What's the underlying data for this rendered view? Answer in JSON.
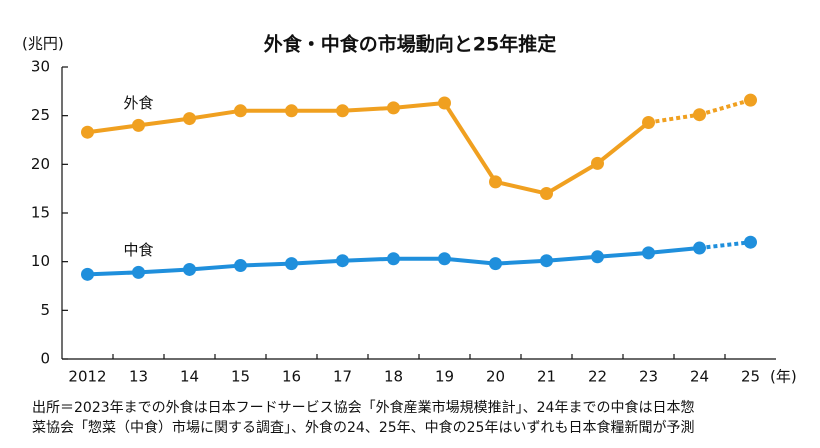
{
  "chart_data": {
    "type": "line",
    "title": "外食・中食の市場動向と25年推定",
    "y_unit": "(兆円)",
    "x_unit": "(年)",
    "categories": [
      "2012",
      "13",
      "14",
      "15",
      "16",
      "17",
      "18",
      "19",
      "20",
      "21",
      "22",
      "23",
      "24",
      "25"
    ],
    "series": [
      {
        "name": "外食",
        "color": "#f0a020",
        "dashed_from": 11,
        "values": [
          23.3,
          24.0,
          24.7,
          25.5,
          25.5,
          25.5,
          25.8,
          26.3,
          18.2,
          17.0,
          20.1,
          24.3,
          25.1,
          26.6
        ]
      },
      {
        "name": "中食",
        "color": "#1f8fdc",
        "dashed_from": 12,
        "values": [
          8.7,
          8.9,
          9.2,
          9.6,
          9.8,
          10.1,
          10.3,
          10.3,
          9.8,
          10.1,
          10.5,
          10.9,
          11.4,
          12.0
        ]
      }
    ],
    "ylim": [
      0,
      30
    ],
    "yticks": [
      0,
      5,
      10,
      15,
      20,
      25,
      30
    ],
    "grid": false,
    "notes": [
      "出所＝2023年までの外食は日本フードサービス協会「外食産業市場規模推計」、24年までの中食は日本惣",
      "菜協会「惣菜（中食）市場に関する調査」、外食の24、25年、中食の25年はいずれも日本食糧新聞が予測"
    ]
  }
}
